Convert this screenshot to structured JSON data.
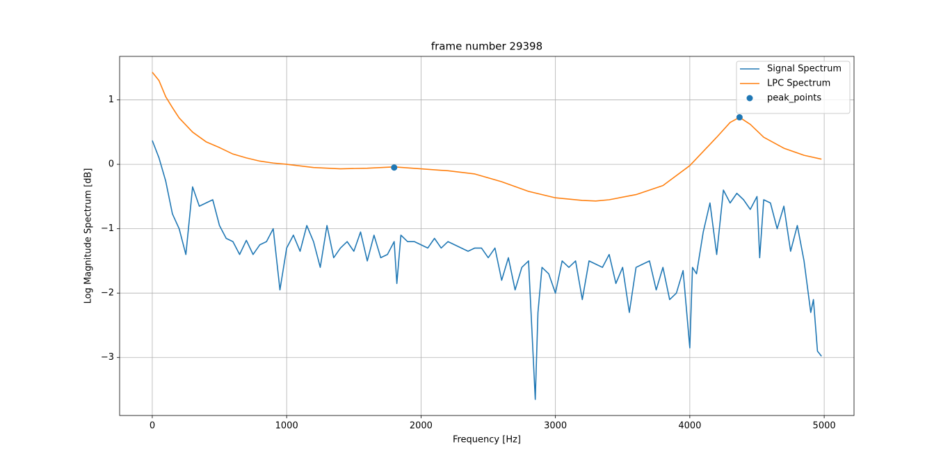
{
  "chart_data": {
    "type": "line",
    "title": "frame number 29398",
    "xlabel": "Frequency [Hz]",
    "ylabel": "Log Magnitude Spectrum [dB]",
    "xlim": [
      -243,
      5222
    ],
    "ylim": [
      -3.9,
      1.676
    ],
    "xticks": [
      0,
      1000,
      2000,
      3000,
      4000,
      5000
    ],
    "yticks": [
      {
        "value": -3,
        "label": "−3"
      },
      {
        "value": -2,
        "label": "−2"
      },
      {
        "value": -1,
        "label": "−1"
      },
      0,
      1
    ],
    "grid": true,
    "legend": "upper right",
    "series": [
      {
        "name": "Signal Spectrum",
        "type": "line",
        "color": "#1f77b4",
        "x": [
          0,
          50,
          100,
          150,
          200,
          250,
          300,
          350,
          400,
          450,
          500,
          550,
          600,
          650,
          700,
          750,
          800,
          850,
          900,
          950,
          1000,
          1050,
          1100,
          1150,
          1200,
          1250,
          1300,
          1350,
          1400,
          1450,
          1500,
          1550,
          1600,
          1650,
          1700,
          1750,
          1800,
          1820,
          1850,
          1900,
          1950,
          2000,
          2050,
          2100,
          2150,
          2200,
          2250,
          2300,
          2350,
          2400,
          2450,
          2500,
          2550,
          2600,
          2650,
          2700,
          2750,
          2800,
          2850,
          2870,
          2900,
          2950,
          3000,
          3050,
          3100,
          3150,
          3200,
          3250,
          3300,
          3350,
          3400,
          3450,
          3500,
          3550,
          3600,
          3650,
          3700,
          3750,
          3800,
          3850,
          3900,
          3950,
          4000,
          4020,
          4050,
          4100,
          4150,
          4200,
          4250,
          4300,
          4350,
          4400,
          4450,
          4500,
          4520,
          4550,
          4600,
          4650,
          4700,
          4750,
          4800,
          4850,
          4900,
          4920,
          4950,
          4980
        ],
        "values": [
          0.37,
          0.1,
          -0.26,
          -0.77,
          -1.0,
          -1.4,
          -0.35,
          -0.65,
          -0.6,
          -0.55,
          -0.95,
          -1.15,
          -1.2,
          -1.4,
          -1.18,
          -1.4,
          -1.25,
          -1.2,
          -1.0,
          -1.95,
          -1.3,
          -1.1,
          -1.35,
          -0.95,
          -1.2,
          -1.6,
          -0.95,
          -1.45,
          -1.3,
          -1.2,
          -1.35,
          -1.05,
          -1.5,
          -1.1,
          -1.45,
          -1.4,
          -1.2,
          -1.85,
          -1.1,
          -1.2,
          -1.2,
          -1.25,
          -1.3,
          -1.15,
          -1.3,
          -1.2,
          -1.25,
          -1.3,
          -1.35,
          -1.3,
          -1.3,
          -1.45,
          -1.3,
          -1.8,
          -1.45,
          -1.95,
          -1.6,
          -1.5,
          -3.65,
          -2.3,
          -1.6,
          -1.7,
          -2.0,
          -1.5,
          -1.6,
          -1.5,
          -2.1,
          -1.5,
          -1.55,
          -1.6,
          -1.4,
          -1.85,
          -1.6,
          -2.3,
          -1.6,
          -1.55,
          -1.5,
          -1.95,
          -1.6,
          -2.1,
          -2.0,
          -1.65,
          -2.85,
          -1.6,
          -1.7,
          -1.05,
          -0.6,
          -1.4,
          -0.4,
          -0.6,
          -0.45,
          -0.55,
          -0.7,
          -0.5,
          -1.45,
          -0.55,
          -0.6,
          -1.0,
          -0.65,
          -1.35,
          -0.95,
          -1.5,
          -2.3,
          -2.1,
          -2.9,
          -2.98
        ]
      },
      {
        "name": "LPC Spectrum",
        "type": "line",
        "color": "#ff7f0e",
        "x": [
          0,
          50,
          100,
          150,
          200,
          300,
          400,
          500,
          600,
          700,
          800,
          900,
          1000,
          1200,
          1400,
          1600,
          1800,
          2000,
          2200,
          2400,
          2600,
          2800,
          3000,
          3200,
          3300,
          3400,
          3600,
          3800,
          4000,
          4100,
          4200,
          4300,
          4370,
          4450,
          4550,
          4700,
          4850,
          4980
        ],
        "values": [
          1.43,
          1.3,
          1.05,
          0.88,
          0.72,
          0.5,
          0.35,
          0.26,
          0.16,
          0.1,
          0.05,
          0.02,
          0.0,
          -0.05,
          -0.07,
          -0.06,
          -0.04,
          -0.07,
          -0.1,
          -0.15,
          -0.27,
          -0.42,
          -0.52,
          -0.56,
          -0.57,
          -0.55,
          -0.47,
          -0.33,
          -0.02,
          0.2,
          0.42,
          0.65,
          0.73,
          0.62,
          0.42,
          0.25,
          0.14,
          0.08
        ]
      },
      {
        "name": "peak_points",
        "type": "scatter",
        "color": "#1f77b4",
        "x": [
          1800,
          4370
        ],
        "values": [
          -0.05,
          0.73
        ]
      }
    ]
  }
}
